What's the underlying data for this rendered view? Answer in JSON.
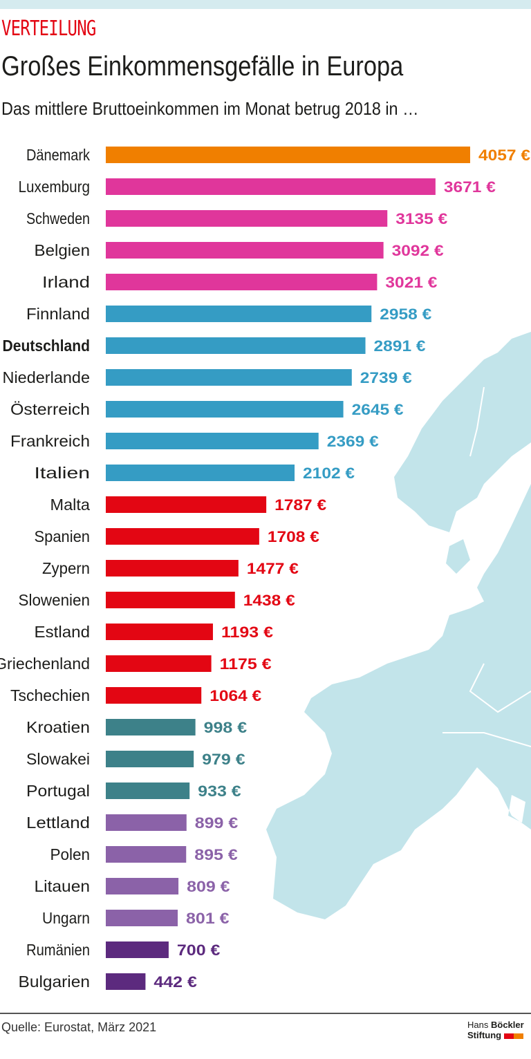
{
  "header": {
    "kicker": "VERTEILUNG",
    "title": "Großes Einkommensgefälle in Europa",
    "subtitle": "Das mittlere Bruttoeinkommen im Monat betrug 2018 in …"
  },
  "footer": {
    "source": "Quelle: Eurostat, März 2021",
    "logo_line1_a": "Hans",
    "logo_line1_b": "Böckler",
    "logo_line2": "Stiftung",
    "logo_colors": [
      "#e30613",
      "#f07f00"
    ]
  },
  "chart_data": {
    "type": "bar",
    "orientation": "horizontal",
    "unit": "€",
    "xlim": [
      0,
      4057
    ],
    "grid": false,
    "highlight": "Deutschland",
    "categories": [
      "Dänemark",
      "Luxemburg",
      "Schweden",
      "Belgien",
      "Irland",
      "Finnland",
      "Deutschland",
      "Niederlande",
      "Österreich",
      "Frankreich",
      "Italien",
      "Malta",
      "Spanien",
      "Zypern",
      "Slowenien",
      "Estland",
      "Griechenland",
      "Tschechien",
      "Kroatien",
      "Slowakei",
      "Portugal",
      "Lettland",
      "Polen",
      "Litauen",
      "Ungarn",
      "Rumänien",
      "Bulgarien"
    ],
    "values": [
      4057,
      3671,
      3135,
      3092,
      3021,
      2958,
      2891,
      2739,
      2645,
      2369,
      2102,
      1787,
      1708,
      1477,
      1438,
      1193,
      1175,
      1064,
      998,
      979,
      933,
      899,
      895,
      809,
      801,
      700,
      442
    ],
    "labels": [
      "4057 €",
      "3671 €",
      "3135 €",
      "3092 €",
      "3021 €",
      "2958 €",
      "2891 €",
      "2739 €",
      "2645 €",
      "2369 €",
      "2102 €",
      "1787 €",
      "1708 €",
      "1477 €",
      "1438 €",
      "1193 €",
      "1175 €",
      "1064 €",
      "998 €",
      "979 €",
      "933 €",
      "899 €",
      "895 €",
      "809 €",
      "801 €",
      "700 €",
      "442 €"
    ],
    "colors": [
      "#f07f00",
      "#e0369b",
      "#e0369b",
      "#e0369b",
      "#e0369b",
      "#359cc4",
      "#359cc4",
      "#359cc4",
      "#359cc4",
      "#359cc4",
      "#359cc4",
      "#e30613",
      "#e30613",
      "#e30613",
      "#e30613",
      "#e30613",
      "#e30613",
      "#e30613",
      "#3d8189",
      "#3d8189",
      "#3d8189",
      "#8b62a8",
      "#8b62a8",
      "#8b62a8",
      "#8b62a8",
      "#5c2a7e",
      "#5c2a7e"
    ]
  },
  "map_color": "#c2e4ea"
}
